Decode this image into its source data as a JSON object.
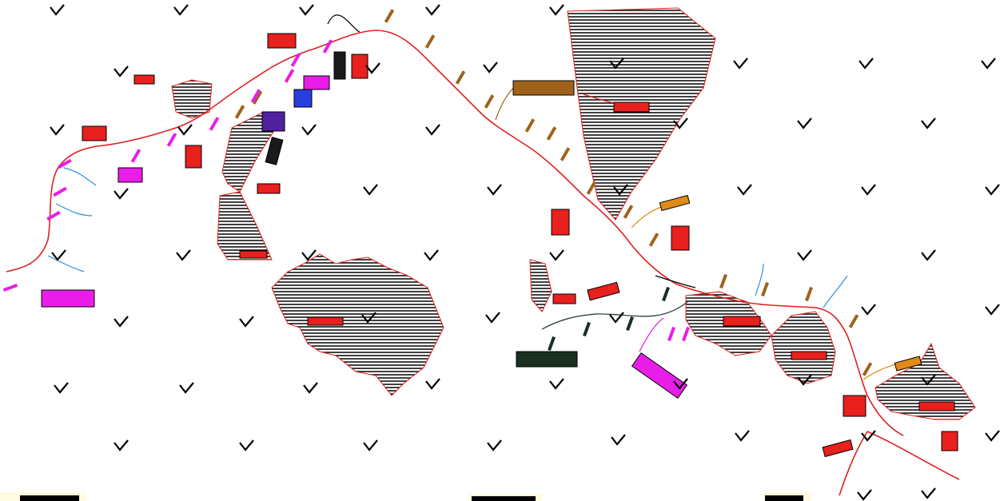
{
  "map": {
    "background": "#ffffff",
    "colors": {
      "main_route": "#e0201e",
      "hatch": "#000000",
      "boundary": "#e0201e",
      "magenta": "#e81ee8",
      "blue": "#2a90e0",
      "brown": "#a0621a",
      "orange": "#e08a1a",
      "dark_green": "#1a3020",
      "purple": "#5020a0",
      "red_block": "#e8201e"
    },
    "symbols": {
      "grass": "grass-symbol-icon",
      "building": "building-icon",
      "culvert": "culvert-icon"
    },
    "labels": [
      "",
      "",
      ""
    ]
  }
}
